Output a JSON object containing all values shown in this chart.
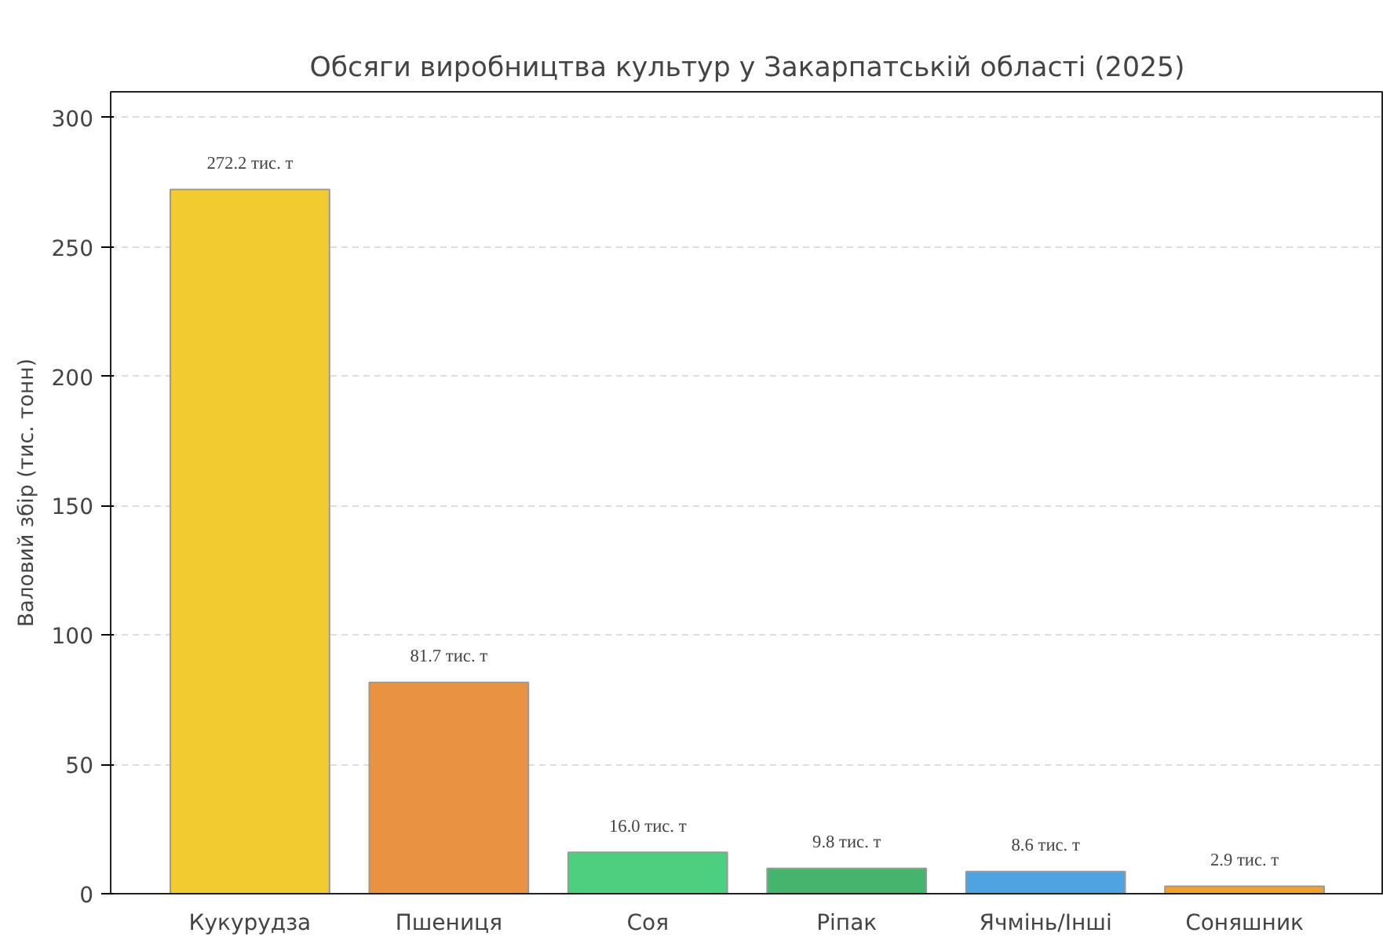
{
  "chart_data": {
    "type": "bar",
    "title": "Обсяги виробництва культур у Закарпатській області (2025)",
    "ylabel": "Валовий збір (тис. тонн)",
    "categories": [
      "Кукурудза",
      "Пшениця",
      "Соя",
      "Ріпак",
      "Ячмінь/Інші",
      "Соняшник"
    ],
    "values": [
      272.2,
      81.7,
      16.0,
      9.8,
      8.6,
      2.9
    ],
    "colors": [
      "#f2cb30",
      "#e89242",
      "#4cd080",
      "#45b46c",
      "#4fa3e0",
      "#f0a030"
    ],
    "value_labels": [
      "272.2 тис. т",
      "81.7 тис. т",
      "16.0 тис. т",
      "9.8 тис. т",
      "8.6 тис. т",
      "2.9 тис. т"
    ],
    "ylim": [
      0,
      310
    ],
    "yticks": [
      0,
      50,
      100,
      150,
      200,
      250,
      300
    ],
    "grid": "y"
  }
}
